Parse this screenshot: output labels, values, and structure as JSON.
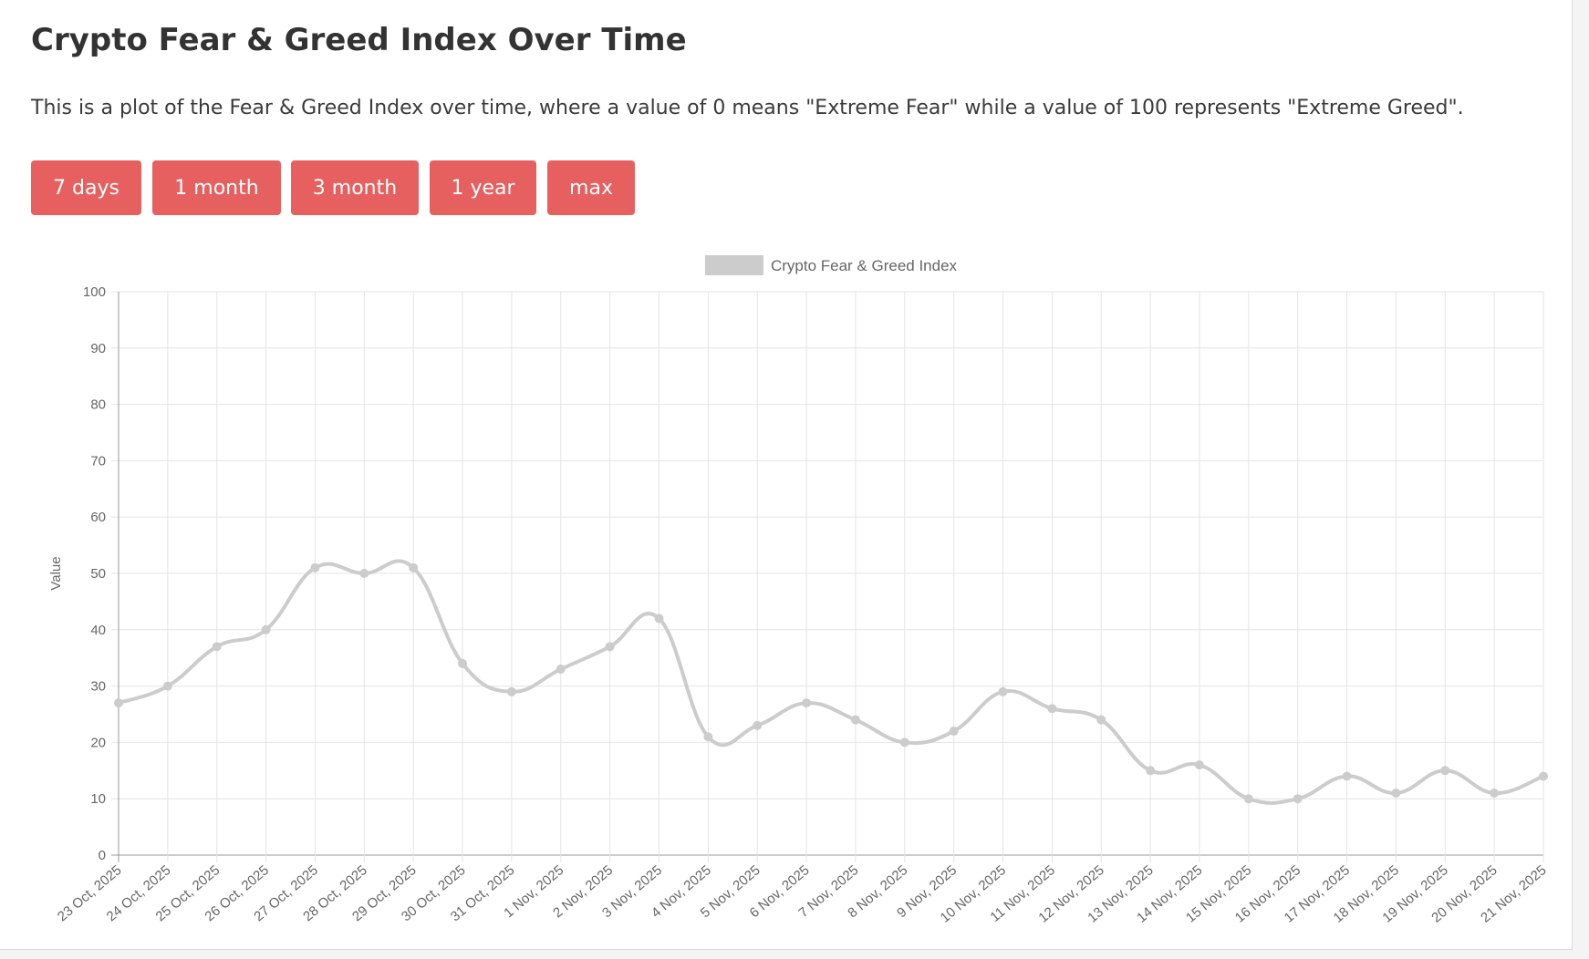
{
  "page": {
    "title": "Crypto Fear & Greed Index Over Time",
    "description": "This is a plot of the Fear & Greed Index over time, where a value of 0 means \"Extreme Fear\" while a value of 100 represents \"Extreme Greed\"."
  },
  "ranges": [
    {
      "label": "7 days"
    },
    {
      "label": "1 month"
    },
    {
      "label": "3 month"
    },
    {
      "label": "1 year"
    },
    {
      "label": "max"
    }
  ],
  "colors": {
    "button": "#e5605f",
    "series": "#cccccc",
    "grid": "#e4e4e4",
    "axis": "#999999"
  },
  "chart_data": {
    "type": "line",
    "title": "",
    "xlabel": "",
    "ylabel": "Value",
    "ylim": [
      0,
      100
    ],
    "yticks": [
      0,
      10,
      20,
      30,
      40,
      50,
      60,
      70,
      80,
      90,
      100
    ],
    "grid": true,
    "legend_position": "top-center",
    "categories": [
      "23 Oct, 2025",
      "24 Oct, 2025",
      "25 Oct, 2025",
      "26 Oct, 2025",
      "27 Oct, 2025",
      "28 Oct, 2025",
      "29 Oct, 2025",
      "30 Oct, 2025",
      "31 Oct, 2025",
      "1 Nov, 2025",
      "2 Nov, 2025",
      "3 Nov, 2025",
      "4 Nov, 2025",
      "5 Nov, 2025",
      "6 Nov, 2025",
      "7 Nov, 2025",
      "8 Nov, 2025",
      "9 Nov, 2025",
      "10 Nov, 2025",
      "11 Nov, 2025",
      "12 Nov, 2025",
      "13 Nov, 2025",
      "14 Nov, 2025",
      "15 Nov, 2025",
      "16 Nov, 2025",
      "17 Nov, 2025",
      "18 Nov, 2025",
      "19 Nov, 2025",
      "20 Nov, 2025",
      "21 Nov, 2025"
    ],
    "series": [
      {
        "name": "Crypto Fear & Greed Index",
        "color": "#cccccc",
        "values": [
          27,
          30,
          37,
          40,
          51,
          50,
          51,
          34,
          29,
          33,
          37,
          42,
          21,
          23,
          27,
          24,
          20,
          22,
          29,
          26,
          24,
          15,
          16,
          10,
          10,
          14,
          11,
          15,
          11,
          14
        ]
      }
    ]
  }
}
